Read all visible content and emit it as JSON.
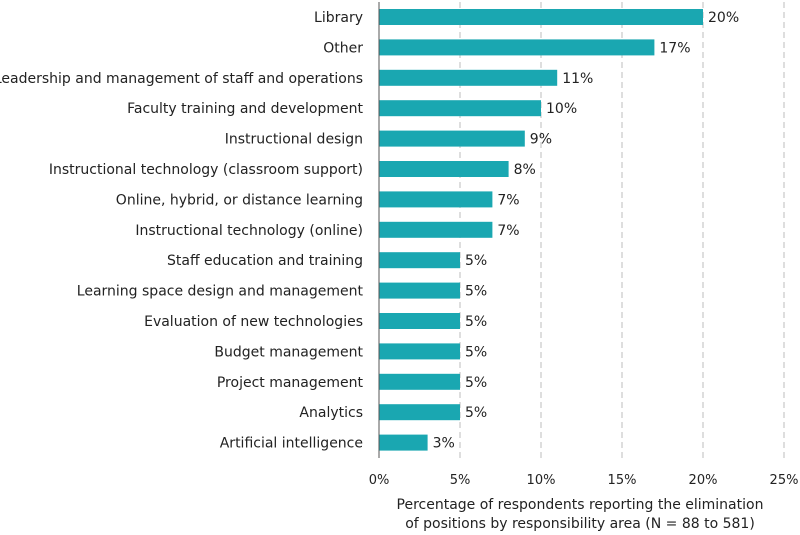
{
  "chart_data": {
    "type": "bar",
    "orientation": "horizontal",
    "categories": [
      "Library",
      "Other",
      "Leadership and management of staff and operations",
      "Faculty training and development",
      "Instructional design",
      "Instructional technology (classroom support)",
      "Online, hybrid, or distance learning",
      "Instructional technology (online)",
      "Staff education and training",
      "Learning space design and management",
      "Evaluation of new technologies",
      "Budget management",
      "Project management",
      "Analytics",
      "Artificial intelligence"
    ],
    "values": [
      20,
      17,
      11,
      10,
      9,
      8,
      7,
      7,
      5,
      5,
      5,
      5,
      5,
      5,
      3
    ],
    "data_labels": [
      "20%",
      "17%",
      "11%",
      "10%",
      "9%",
      "8%",
      "7%",
      "7%",
      "5%",
      "5%",
      "5%",
      "5%",
      "5%",
      "5%",
      "3%"
    ],
    "xlim": [
      0,
      25
    ],
    "xticks": [
      0,
      5,
      10,
      15,
      20,
      25
    ],
    "xtick_labels": [
      "0%",
      "5%",
      "10%",
      "15%",
      "20%",
      "25%"
    ],
    "xlabel_line1": "Percentage of respondents reporting the elimination",
    "xlabel_line2": "of positions by responsibility area (N = 88 to 581)",
    "grid": "vertical dashed",
    "bar_color": "#1aa7b1",
    "grid_color": "#bdbdbd"
  }
}
